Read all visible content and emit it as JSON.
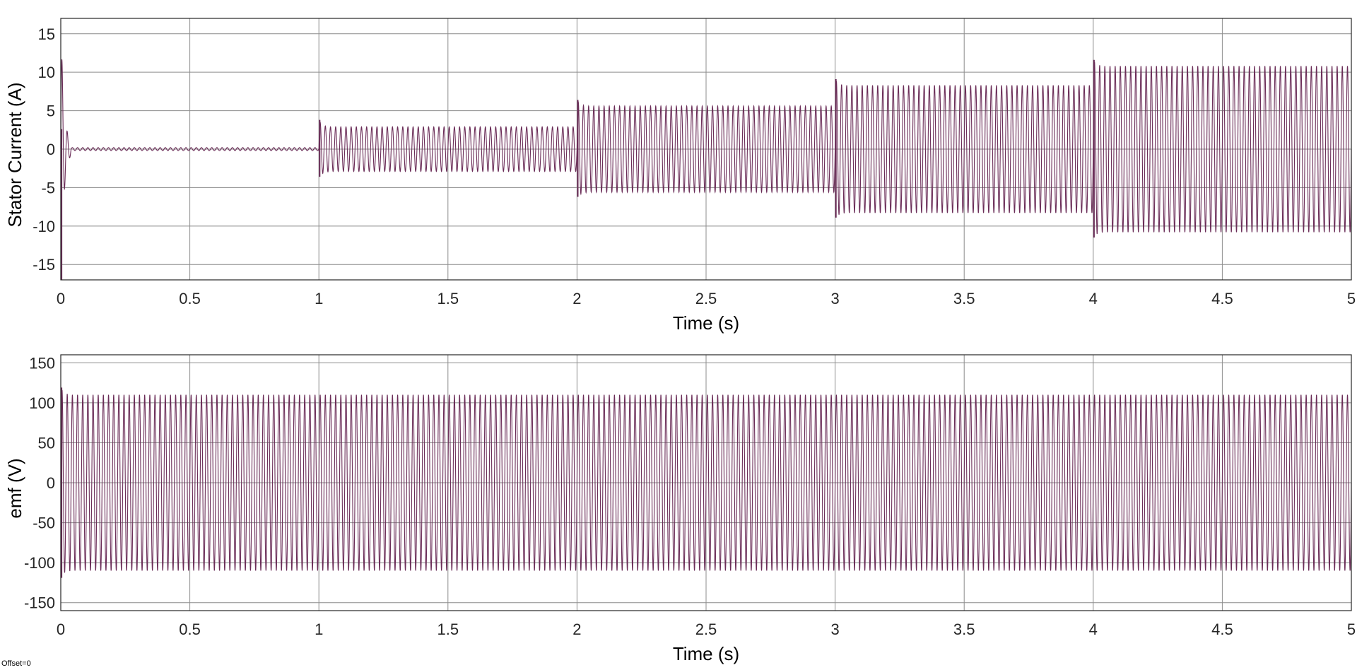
{
  "footer": {
    "text": "Offset=0"
  },
  "colors": {
    "signal": "#6b2d58",
    "grid": "#8c8c8c",
    "axis": "#262626",
    "background": "#ffffff"
  },
  "chart_data": [
    {
      "type": "line",
      "xlabel": "Time (s)",
      "ylabel": "Stator Current (A)",
      "xlim": [
        0,
        5
      ],
      "ylim": [
        -17,
        17
      ],
      "xticks": [
        0,
        0.5,
        1,
        1.5,
        2,
        2.5,
        3,
        3.5,
        4,
        4.5,
        5
      ],
      "yticks": [
        -15,
        -10,
        -5,
        0,
        5,
        10,
        15
      ],
      "grid": true,
      "signal": "sinusoid",
      "frequency_hz": 50,
      "segments": [
        {
          "x_start": 0,
          "x_end": 1,
          "amplitude": 0.2
        },
        {
          "x_start": 1,
          "x_end": 2,
          "amplitude": 2.9
        },
        {
          "x_start": 2,
          "x_end": 3,
          "amplitude": 5.6
        },
        {
          "x_start": 3,
          "x_end": 4,
          "amplitude": 8.3
        },
        {
          "x_start": 4,
          "x_end": 5,
          "amplitude": 10.8
        }
      ],
      "transients": [
        {
          "x": 0.0,
          "peak_max": 2.6,
          "peak_min": -17
        },
        {
          "x": 1.0,
          "peak_max": 3.8,
          "peak_min": -3.6
        },
        {
          "x": 2.0,
          "peak_max": 6.4,
          "peak_min": -6.2
        },
        {
          "x": 3.0,
          "peak_max": 9.1,
          "peak_min": -8.9
        },
        {
          "x": 4.0,
          "peak_max": 11.6,
          "peak_min": -11.5
        }
      ]
    },
    {
      "type": "line",
      "xlabel": "Time (s)",
      "ylabel": "emf (V)",
      "xlim": [
        0,
        5
      ],
      "ylim": [
        -160,
        160
      ],
      "xticks": [
        0,
        0.5,
        1,
        1.5,
        2,
        2.5,
        3,
        3.5,
        4,
        4.5,
        5
      ],
      "yticks": [
        -150,
        -100,
        -50,
        0,
        50,
        100,
        150
      ],
      "grid": true,
      "signal": "sinusoid",
      "frequency_hz": 50,
      "amplitude": 110,
      "transients": [
        {
          "x": 0.0,
          "peak_max": 119,
          "peak_min": -119
        }
      ]
    }
  ]
}
